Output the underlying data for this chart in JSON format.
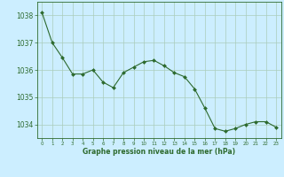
{
  "x": [
    0,
    1,
    2,
    3,
    4,
    5,
    6,
    7,
    8,
    9,
    10,
    11,
    12,
    13,
    14,
    15,
    16,
    17,
    18,
    19,
    20,
    21,
    22,
    23
  ],
  "y": [
    1038.1,
    1037.0,
    1036.45,
    1035.85,
    1035.85,
    1036.0,
    1035.55,
    1035.35,
    1035.9,
    1036.1,
    1036.3,
    1036.35,
    1036.15,
    1035.9,
    1035.75,
    1035.3,
    1034.6,
    1033.85,
    1033.75,
    1033.85,
    1034.0,
    1034.1,
    1034.1,
    1033.9
  ],
  "line_color": "#2d6a2d",
  "marker_color": "#2d6a2d",
  "background_color": "#cceeff",
  "grid_color": "#aaccbb",
  "axis_label_color": "#2d6a2d",
  "tick_label_color": "#2d6a2d",
  "xlabel": "Graphe pression niveau de la mer (hPa)",
  "ylim": [
    1033.5,
    1038.5
  ],
  "yticks": [
    1034,
    1035,
    1036,
    1037,
    1038
  ],
  "xlim": [
    -0.5,
    23.5
  ],
  "title": ""
}
